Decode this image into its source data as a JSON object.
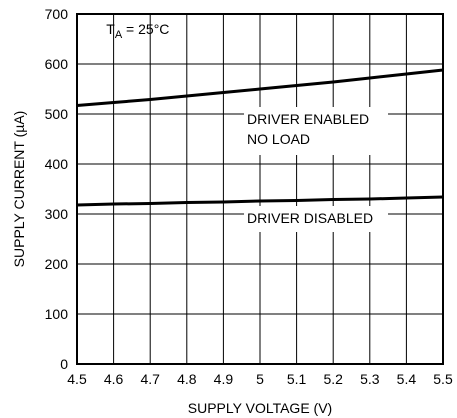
{
  "chart_data": {
    "type": "line",
    "xlabel": "SUPPLY VOLTAGE (V)",
    "ylabel": "SUPPLY CURRENT (µA)",
    "xlim": [
      4.5,
      5.5
    ],
    "ylim": [
      0,
      700
    ],
    "x_ticks": [
      "4.5",
      "4.6",
      "4.7",
      "4.8",
      "4.9",
      "5",
      "5.1",
      "5.2",
      "5.3",
      "5.4",
      "5.5"
    ],
    "y_ticks": [
      "0",
      "100",
      "200",
      "300",
      "400",
      "500",
      "600",
      "700"
    ],
    "grid": true,
    "condition": {
      "main": "T",
      "sub": "A",
      "rest": " = 25°C"
    },
    "series": [
      {
        "name": "DRIVER ENABLED NO LOAD",
        "label_lines": [
          "DRIVER ENABLED",
          "NO LOAD"
        ],
        "x": [
          4.5,
          4.6,
          4.7,
          4.8,
          4.9,
          5.0,
          5.1,
          5.2,
          5.3,
          5.4,
          5.5
        ],
        "y": [
          517,
          523,
          529,
          536,
          543,
          550,
          557,
          564,
          572,
          580,
          588
        ]
      },
      {
        "name": "DRIVER DISABLED",
        "label_lines": [
          "DRIVER DISABLED"
        ],
        "x": [
          4.5,
          4.6,
          4.7,
          4.8,
          4.9,
          5.0,
          5.1,
          5.2,
          5.3,
          5.4,
          5.5
        ],
        "y": [
          318,
          320,
          321,
          323,
          324,
          326,
          327,
          329,
          330,
          332,
          334
        ]
      }
    ]
  }
}
